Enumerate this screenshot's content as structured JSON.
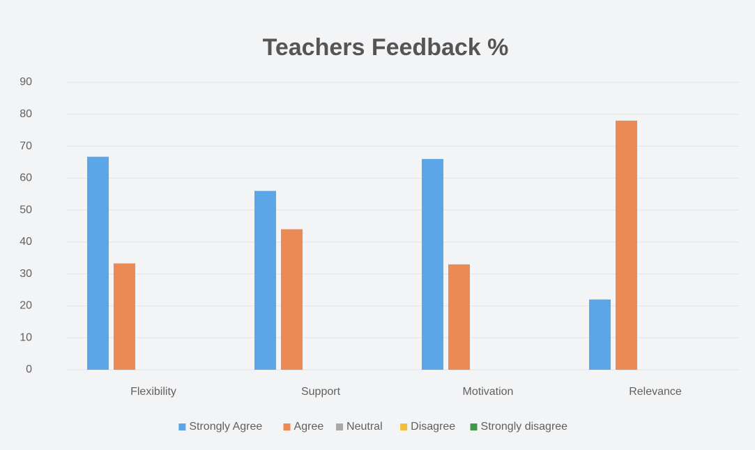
{
  "chart_data": {
    "type": "bar",
    "title": "Teachers Feedback %",
    "categories": [
      "Flexibility",
      "Support",
      "Motivation",
      "Relevance"
    ],
    "series": [
      {
        "name": "Strongly Agree",
        "color": "#5aa6e6",
        "values": [
          66.7,
          56,
          66,
          22
        ]
      },
      {
        "name": "Agree",
        "color": "#ec8a55",
        "values": [
          33.3,
          44,
          33,
          78
        ]
      },
      {
        "name": "Neutral",
        "color": "#a9a9a9",
        "values": [
          0,
          0,
          0,
          0
        ]
      },
      {
        "name": "Disagree",
        "color": "#f3bf3a",
        "values": [
          0,
          0,
          0,
          0
        ]
      },
      {
        "name": "Strongly disagree",
        "color": "#3f9a4c",
        "values": [
          0,
          0,
          0,
          0
        ]
      }
    ],
    "ylim": [
      0,
      90
    ],
    "yticks": [
      0,
      10,
      20,
      30,
      40,
      50,
      60,
      70,
      80,
      90
    ],
    "grid": true,
    "legend": "bottom"
  }
}
